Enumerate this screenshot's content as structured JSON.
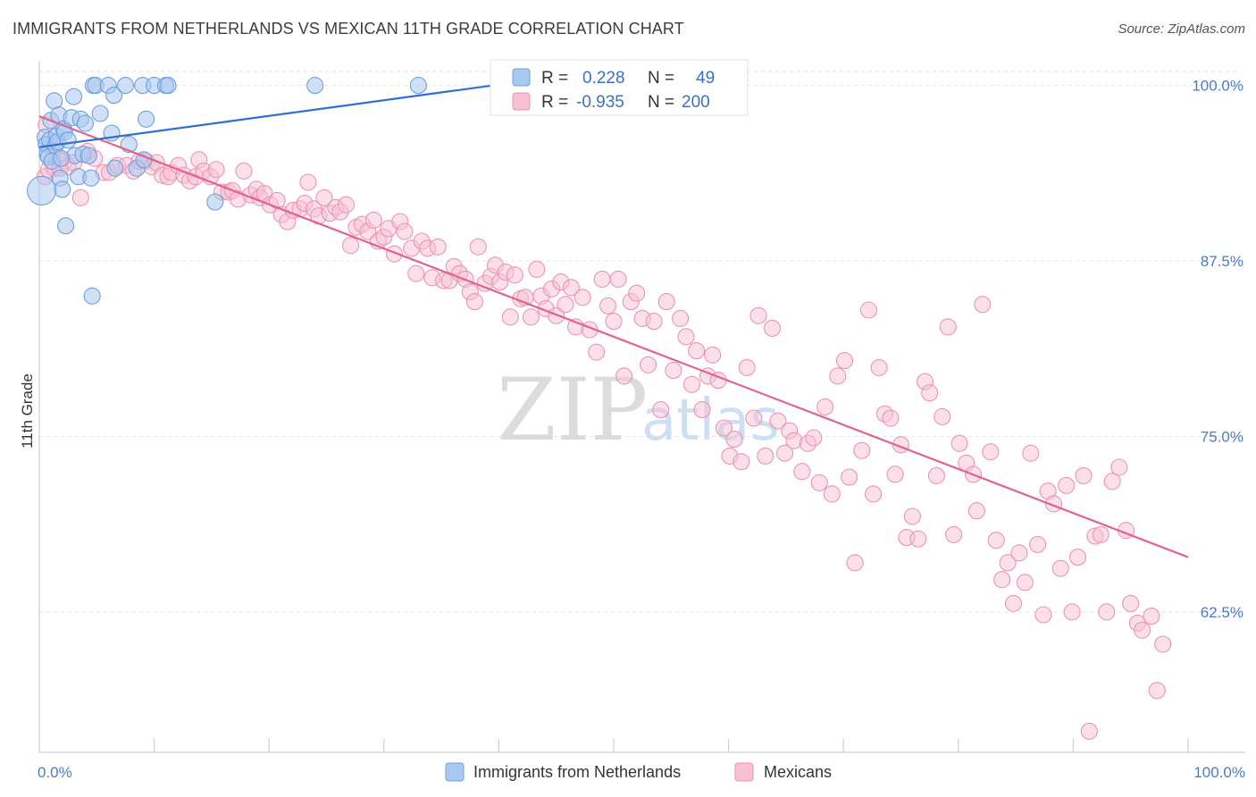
{
  "title": "IMMIGRANTS FROM NETHERLANDS VS MEXICAN 11TH GRADE CORRELATION CHART",
  "source": "Source: ZipAtlas.com",
  "watermark": {
    "zip": "ZIP",
    "atlas": "atlas"
  },
  "colors": {
    "blue_fill": "#a9c8f0",
    "blue_stroke": "#6f9ee0",
    "blue_line": "#2f6fd0",
    "pink_fill": "#f7c1d3",
    "pink_stroke": "#ec93b2",
    "pink_line": "#e0628f",
    "grid": "#e3e3e3",
    "tick_label": "#4a7cc9"
  },
  "legend": {
    "r_label": "R =",
    "n_label": "N =",
    "rows": [
      {
        "r": "0.228",
        "n": "49"
      },
      {
        "r": "-0.935",
        "n": "200"
      }
    ]
  },
  "chart_data": {
    "type": "scatter",
    "title": "IMMIGRANTS FROM NETHERLANDS VS MEXICAN 11TH GRADE CORRELATION CHART",
    "ylabel": "11th Grade",
    "xlim": [
      0,
      100
    ],
    "ylim": [
      52.5,
      101.5
    ],
    "y_ticks": [
      62.5,
      75.0,
      87.5,
      100.0
    ],
    "y_tick_labels": [
      "62.5%",
      "75.0%",
      "87.5%",
      "100.0%"
    ],
    "x_tick_labels": [
      "0.0%",
      "100.0%"
    ],
    "x_minor_ticks": [
      10,
      20,
      30,
      40,
      50,
      60,
      70,
      80,
      90,
      100
    ],
    "series": [
      {
        "name": "Immigrants from Netherlands",
        "r": 0.228,
        "n": 49,
        "trend": {
          "x": [
            0,
            39.5
          ],
          "y": [
            95.6,
            100.0
          ]
        },
        "points": [
          [
            0.5,
            96.3
          ],
          [
            0.6,
            95.8
          ],
          [
            0.7,
            95.1
          ],
          [
            0.8,
            94.9
          ],
          [
            0.9,
            96.1
          ],
          [
            1.0,
            97.5
          ],
          [
            1.1,
            94.6
          ],
          [
            1.3,
            98.9
          ],
          [
            1.4,
            95.7
          ],
          [
            1.5,
            96.4
          ],
          [
            1.6,
            96.0
          ],
          [
            1.7,
            97.9
          ],
          [
            1.8,
            93.4
          ],
          [
            2.0,
            92.6
          ],
          [
            2.1,
            96.9
          ],
          [
            2.2,
            96.7
          ],
          [
            2.3,
            90.0
          ],
          [
            2.5,
            96.1
          ],
          [
            2.8,
            97.7
          ],
          [
            3.0,
            99.2
          ],
          [
            3.1,
            95.0
          ],
          [
            3.4,
            93.5
          ],
          [
            3.6,
            97.6
          ],
          [
            3.8,
            95.1
          ],
          [
            4.0,
            97.3
          ],
          [
            4.3,
            95.0
          ],
          [
            4.5,
            93.4
          ],
          [
            4.6,
            85.0
          ],
          [
            4.7,
            100.0
          ],
          [
            4.9,
            100.0
          ],
          [
            5.3,
            98.0
          ],
          [
            6.0,
            100.0
          ],
          [
            6.3,
            96.6
          ],
          [
            6.5,
            99.3
          ],
          [
            6.6,
            94.1
          ],
          [
            7.5,
            100.0
          ],
          [
            7.8,
            95.8
          ],
          [
            8.5,
            94.1
          ],
          [
            9.0,
            100.0
          ],
          [
            9.1,
            94.7
          ],
          [
            9.3,
            97.6
          ],
          [
            10.0,
            100.0
          ],
          [
            11.0,
            100.0
          ],
          [
            11.2,
            100.0
          ],
          [
            15.3,
            91.7
          ],
          [
            24.0,
            100.0
          ],
          [
            33.0,
            100.0
          ],
          [
            0.2,
            92.5
          ],
          [
            1.9,
            94.8
          ]
        ]
      },
      {
        "name": "Mexicans",
        "r": -0.935,
        "n": 200,
        "trend": {
          "x": [
            0,
            100
          ],
          "y": [
            97.8,
            66.4
          ]
        },
        "points": [
          [
            0.5,
            93.5
          ],
          [
            0.6,
            97.2
          ],
          [
            0.8,
            94.0
          ],
          [
            1.0,
            95.7
          ],
          [
            1.3,
            94.1
          ],
          [
            1.6,
            94.8
          ],
          [
            1.8,
            94.1
          ],
          [
            2.2,
            94.6
          ],
          [
            2.5,
            94.2
          ],
          [
            3.0,
            94.5
          ],
          [
            3.6,
            92.0
          ],
          [
            4.2,
            95.3
          ],
          [
            4.8,
            94.8
          ],
          [
            5.6,
            93.8
          ],
          [
            6.1,
            93.8
          ],
          [
            6.8,
            94.3
          ],
          [
            7.6,
            94.3
          ],
          [
            8.2,
            93.9
          ],
          [
            8.7,
            94.6
          ],
          [
            9.3,
            94.6
          ],
          [
            9.8,
            94.2
          ],
          [
            10.2,
            94.5
          ],
          [
            10.7,
            93.6
          ],
          [
            11.2,
            93.5
          ],
          [
            11.5,
            93.8
          ],
          [
            12.1,
            94.3
          ],
          [
            12.6,
            93.6
          ],
          [
            13.1,
            93.2
          ],
          [
            13.6,
            93.5
          ],
          [
            13.9,
            94.7
          ],
          [
            14.3,
            93.9
          ],
          [
            14.9,
            93.5
          ],
          [
            15.4,
            94.0
          ],
          [
            15.9,
            92.4
          ],
          [
            16.5,
            92.4
          ],
          [
            16.8,
            92.5
          ],
          [
            17.3,
            91.9
          ],
          [
            17.8,
            93.9
          ],
          [
            18.4,
            92.2
          ],
          [
            18.9,
            92.6
          ],
          [
            19.2,
            92.0
          ],
          [
            19.6,
            92.3
          ],
          [
            20.1,
            91.5
          ],
          [
            20.7,
            91.8
          ],
          [
            21.1,
            90.8
          ],
          [
            21.6,
            90.3
          ],
          [
            22.1,
            91.1
          ],
          [
            22.7,
            91.2
          ],
          [
            23.1,
            91.6
          ],
          [
            23.4,
            93.1
          ],
          [
            23.9,
            91.2
          ],
          [
            24.3,
            90.7
          ],
          [
            24.8,
            92.0
          ],
          [
            25.3,
            90.9
          ],
          [
            25.8,
            91.3
          ],
          [
            26.2,
            91.0
          ],
          [
            26.7,
            91.5
          ],
          [
            27.1,
            88.6
          ],
          [
            27.6,
            89.9
          ],
          [
            28.1,
            90.1
          ],
          [
            28.6,
            89.6
          ],
          [
            29.1,
            90.4
          ],
          [
            29.5,
            88.9
          ],
          [
            30.0,
            89.2
          ],
          [
            30.4,
            89.8
          ],
          [
            30.9,
            88.0
          ],
          [
            31.4,
            90.3
          ],
          [
            31.8,
            89.6
          ],
          [
            32.4,
            88.4
          ],
          [
            32.8,
            86.6
          ],
          [
            33.3,
            88.9
          ],
          [
            33.8,
            88.4
          ],
          [
            34.2,
            86.3
          ],
          [
            34.7,
            88.5
          ],
          [
            35.2,
            86.1
          ],
          [
            35.7,
            86.1
          ],
          [
            36.1,
            87.1
          ],
          [
            36.6,
            86.6
          ],
          [
            37.1,
            86.2
          ],
          [
            37.5,
            85.3
          ],
          [
            37.9,
            84.6
          ],
          [
            38.2,
            88.5
          ],
          [
            38.8,
            85.9
          ],
          [
            39.3,
            86.4
          ],
          [
            39.7,
            87.2
          ],
          [
            40.1,
            86.0
          ],
          [
            40.6,
            86.7
          ],
          [
            41.0,
            83.5
          ],
          [
            41.4,
            86.5
          ],
          [
            41.9,
            84.8
          ],
          [
            42.3,
            84.9
          ],
          [
            42.8,
            83.5
          ],
          [
            43.3,
            86.9
          ],
          [
            43.7,
            85.0
          ],
          [
            44.1,
            84.1
          ],
          [
            44.6,
            85.5
          ],
          [
            45.0,
            83.6
          ],
          [
            45.4,
            86.0
          ],
          [
            45.8,
            84.4
          ],
          [
            46.3,
            85.6
          ],
          [
            46.7,
            82.8
          ],
          [
            47.3,
            84.9
          ],
          [
            47.9,
            82.6
          ],
          [
            48.5,
            81.0
          ],
          [
            49.0,
            86.2
          ],
          [
            49.5,
            84.3
          ],
          [
            50.0,
            83.2
          ],
          [
            50.4,
            86.2
          ],
          [
            50.9,
            79.3
          ],
          [
            51.5,
            84.6
          ],
          [
            52.0,
            85.2
          ],
          [
            52.5,
            83.4
          ],
          [
            53.0,
            80.1
          ],
          [
            53.5,
            83.2
          ],
          [
            54.1,
            76.9
          ],
          [
            54.6,
            84.6
          ],
          [
            55.2,
            79.7
          ],
          [
            55.8,
            83.4
          ],
          [
            56.3,
            82.1
          ],
          [
            56.8,
            78.7
          ],
          [
            57.2,
            81.1
          ],
          [
            57.7,
            76.9
          ],
          [
            58.2,
            79.3
          ],
          [
            58.6,
            80.8
          ],
          [
            59.1,
            79.0
          ],
          [
            59.6,
            75.6
          ],
          [
            60.1,
            73.6
          ],
          [
            60.5,
            74.8
          ],
          [
            61.1,
            73.2
          ],
          [
            61.6,
            79.9
          ],
          [
            62.2,
            76.3
          ],
          [
            62.6,
            83.6
          ],
          [
            63.2,
            73.6
          ],
          [
            63.8,
            82.7
          ],
          [
            64.3,
            76.1
          ],
          [
            64.9,
            73.8
          ],
          [
            65.3,
            75.4
          ],
          [
            65.7,
            74.7
          ],
          [
            66.4,
            72.5
          ],
          [
            66.9,
            74.5
          ],
          [
            67.4,
            74.9
          ],
          [
            67.9,
            71.7
          ],
          [
            68.4,
            77.1
          ],
          [
            69.0,
            70.9
          ],
          [
            69.5,
            79.3
          ],
          [
            70.1,
            80.4
          ],
          [
            70.5,
            72.1
          ],
          [
            71.0,
            66.0
          ],
          [
            71.6,
            74.0
          ],
          [
            72.2,
            84.0
          ],
          [
            72.6,
            70.9
          ],
          [
            73.1,
            79.9
          ],
          [
            73.6,
            76.6
          ],
          [
            74.1,
            76.3
          ],
          [
            74.5,
            72.3
          ],
          [
            75.0,
            74.4
          ],
          [
            75.5,
            67.8
          ],
          [
            76.0,
            69.3
          ],
          [
            76.5,
            67.7
          ],
          [
            77.1,
            78.9
          ],
          [
            77.5,
            78.1
          ],
          [
            78.1,
            72.2
          ],
          [
            78.6,
            76.4
          ],
          [
            79.1,
            82.8
          ],
          [
            79.6,
            68.0
          ],
          [
            80.1,
            74.5
          ],
          [
            80.7,
            73.1
          ],
          [
            81.3,
            72.3
          ],
          [
            81.6,
            69.7
          ],
          [
            82.1,
            84.4
          ],
          [
            82.8,
            73.9
          ],
          [
            83.3,
            67.6
          ],
          [
            83.8,
            64.8
          ],
          [
            84.3,
            66.0
          ],
          [
            84.8,
            63.1
          ],
          [
            85.3,
            66.7
          ],
          [
            85.8,
            64.6
          ],
          [
            86.3,
            73.8
          ],
          [
            86.9,
            67.3
          ],
          [
            87.4,
            62.3
          ],
          [
            87.8,
            71.1
          ],
          [
            88.3,
            70.2
          ],
          [
            88.9,
            65.6
          ],
          [
            89.4,
            71.5
          ],
          [
            89.9,
            62.5
          ],
          [
            90.4,
            66.4
          ],
          [
            90.9,
            72.2
          ],
          [
            91.4,
            54.0
          ],
          [
            91.9,
            67.9
          ],
          [
            92.4,
            68.0
          ],
          [
            92.9,
            62.5
          ],
          [
            93.4,
            71.8
          ],
          [
            94.0,
            72.8
          ],
          [
            94.6,
            68.3
          ],
          [
            95.0,
            63.1
          ],
          [
            95.6,
            61.7
          ],
          [
            96.0,
            61.2
          ],
          [
            96.8,
            62.2
          ],
          [
            97.3,
            56.9
          ],
          [
            97.8,
            60.2
          ]
        ]
      }
    ],
    "legend": [
      "Immigrants from Netherlands",
      "Mexicans"
    ]
  }
}
